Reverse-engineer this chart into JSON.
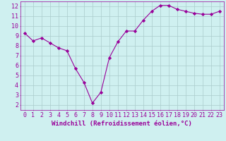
{
  "x": [
    0,
    1,
    2,
    3,
    4,
    5,
    6,
    7,
    8,
    9,
    10,
    11,
    12,
    13,
    14,
    15,
    16,
    17,
    18,
    19,
    20,
    21,
    22,
    23
  ],
  "y": [
    9.3,
    8.5,
    8.8,
    8.3,
    7.8,
    7.5,
    5.7,
    4.3,
    2.2,
    3.3,
    6.8,
    8.4,
    9.5,
    9.5,
    10.6,
    11.5,
    12.1,
    12.1,
    11.7,
    11.5,
    11.3,
    11.2,
    11.2,
    11.5
  ],
  "line_color": "#990099",
  "marker": "D",
  "marker_size": 2.2,
  "bg_color": "#cff0f0",
  "grid_color": "#aacccc",
  "xlabel": "Windchill (Refroidissement éolien,°C)",
  "xlim": [
    -0.5,
    23.5
  ],
  "ylim": [
    1.5,
    12.5
  ],
  "yticks": [
    2,
    3,
    4,
    5,
    6,
    7,
    8,
    9,
    10,
    11,
    12
  ],
  "xticks": [
    0,
    1,
    2,
    3,
    4,
    5,
    6,
    7,
    8,
    9,
    10,
    11,
    12,
    13,
    14,
    15,
    16,
    17,
    18,
    19,
    20,
    21,
    22,
    23
  ],
  "tick_color": "#990099",
  "label_color": "#990099",
  "axis_label_fontsize": 6.5,
  "tick_fontsize": 6.0,
  "line_width": 0.8
}
